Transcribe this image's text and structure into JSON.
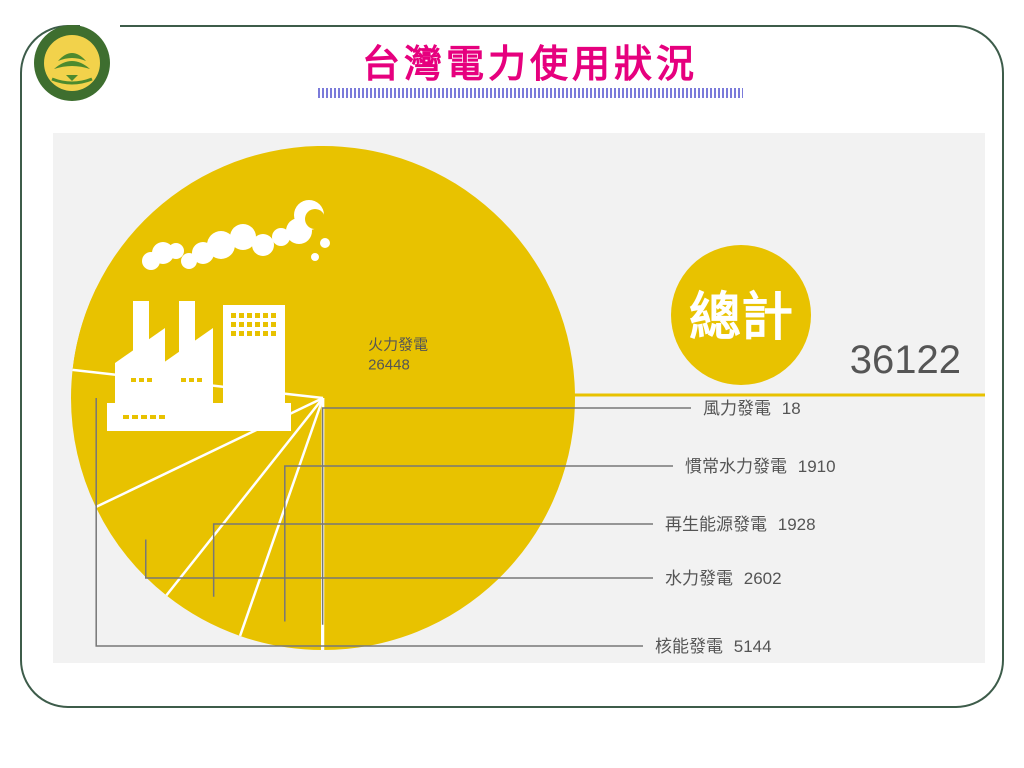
{
  "header": {
    "title": "台灣電力使用狀況"
  },
  "logo": {
    "icon": "university-seal-icon",
    "colors": {
      "ring": "#3e6e2f",
      "inner": "#f2d24b",
      "leaf": "#4d8a2e"
    }
  },
  "chart_data": {
    "type": "pie",
    "total_label": "總計",
    "total_value": "36122",
    "total": 36122,
    "slices": [
      {
        "label": "火力發電",
        "value": 26448,
        "value_text": "26448"
      },
      {
        "label": "風力發電",
        "value": 18,
        "value_text": "18"
      },
      {
        "label": "慣常水力發電",
        "value": 1910,
        "value_text": "1910"
      },
      {
        "label": "再生能源發電",
        "value": 1928,
        "value_text": "1928"
      },
      {
        "label": "水力發電",
        "value": 2602,
        "value_text": "2602"
      },
      {
        "label": "核能發電",
        "value": 5144,
        "value_text": "5144"
      }
    ],
    "colors": {
      "slice": "#e8c200",
      "background": "#f2f2f2",
      "divider": "#ffffff",
      "leader": "#777777",
      "text": "#555555",
      "axis": "#e8c200"
    },
    "decorations": [
      "factory-icon"
    ]
  }
}
